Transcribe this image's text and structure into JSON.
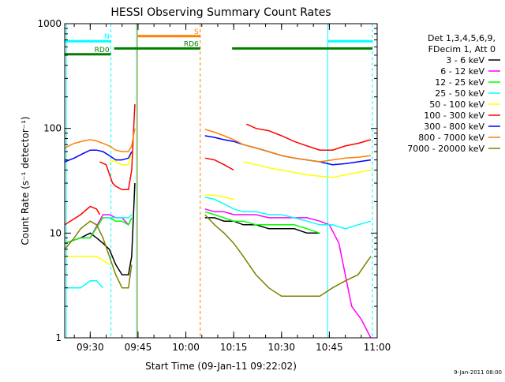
{
  "chart_data": {
    "type": "line",
    "title": "HESSI Observing Summary Count Rates",
    "xlabel": "Start Time (09-Jan-11 09:22:02)",
    "ylabel": "Count Rate (s⁻¹ detector⁻¹)",
    "x_unit": "minutes after 09:22:02",
    "xlim": [
      0,
      98
    ],
    "ylim": [
      1,
      1000
    ],
    "yscale": "log",
    "grid": false,
    "legend_position": "right",
    "footer": "9-Jan-2011 08:00",
    "legend_header": [
      "Det 1,3,4,5,6,9,",
      "FDecim 1, Att 0"
    ],
    "x_ticks": [
      {
        "label": "09:30",
        "value": 8
      },
      {
        "label": "09:45",
        "value": 23
      },
      {
        "label": "10:00",
        "value": 38
      },
      {
        "label": "10:15",
        "value": 53
      },
      {
        "label": "10:30",
        "value": 68
      },
      {
        "label": "10:45",
        "value": 83
      },
      {
        "label": "11:00",
        "value": 98
      }
    ],
    "y_ticks": [
      {
        "label": "1",
        "value": 1
      },
      {
        "label": "10",
        "value": 10
      },
      {
        "label": "100",
        "value": 100
      },
      {
        "label": "1000",
        "value": 1000
      }
    ],
    "vlines": [
      {
        "x": 0.5,
        "style": "solid",
        "color": "#00ffff"
      },
      {
        "x": 14.5,
        "style": "dashed",
        "color": "#00ffff"
      },
      {
        "x": 22.5,
        "style": "solid",
        "color": "#00ffff"
      },
      {
        "x": 22.8,
        "style": "solid",
        "color": "#ff8000"
      },
      {
        "x": 42.5,
        "style": "dashed",
        "color": "#ff8000"
      },
      {
        "x": 82.5,
        "style": "solid",
        "color": "#00ffff"
      },
      {
        "x": 96.5,
        "style": "dashed",
        "color": "#00ffff"
      }
    ],
    "bars": [
      {
        "label": "N",
        "color": "#00ffff",
        "y": 680,
        "segments": [
          [
            0,
            14.5
          ],
          [
            82.5,
            96.5
          ]
        ]
      },
      {
        "label": "S",
        "color": "#ff8000",
        "y": 760,
        "segments": [
          [
            22.8,
            42.5
          ]
        ]
      },
      {
        "label": "RD0",
        "color": "#008000",
        "y": 510,
        "segments": [
          [
            0,
            14.5
          ]
        ]
      },
      {
        "label": "RD6",
        "color": "#008000",
        "y": 580,
        "segments": [
          [
            15.5,
            42.5
          ],
          [
            52.5,
            96.5
          ]
        ]
      }
    ],
    "series": [
      {
        "name": "3 - 6 keV",
        "color": "#000000",
        "segments": [
          [
            [
              0,
              8
            ],
            [
              5,
              9
            ],
            [
              8,
              10
            ],
            [
              10,
              9
            ],
            [
              12,
              8
            ],
            [
              14,
              7
            ],
            [
              16,
              5
            ],
            [
              18,
              4
            ],
            [
              20,
              4
            ],
            [
              21,
              6
            ],
            [
              22,
              30
            ]
          ],
          [
            [
              44,
              14
            ],
            [
              47,
              14
            ],
            [
              50,
              13
            ],
            [
              53,
              13
            ],
            [
              56,
              12
            ],
            [
              60,
              12
            ],
            [
              64,
              11
            ],
            [
              68,
              11
            ],
            [
              72,
              11
            ],
            [
              76,
              10
            ],
            [
              80,
              10
            ]
          ]
        ]
      },
      {
        "name": "6 - 12 keV",
        "color": "#ff00ff",
        "segments": [
          [
            [
              0,
              8
            ],
            [
              5,
              9
            ],
            [
              8,
              9
            ],
            [
              12,
              15
            ],
            [
              14,
              15
            ],
            [
              16,
              14
            ],
            [
              18,
              14
            ],
            [
              20,
              12
            ],
            [
              21,
              14
            ]
          ],
          [
            [
              44,
              17
            ],
            [
              47,
              16
            ],
            [
              50,
              16
            ],
            [
              53,
              15
            ],
            [
              56,
              15
            ],
            [
              60,
              15
            ],
            [
              64,
              14
            ],
            [
              68,
              14
            ],
            [
              72,
              14
            ],
            [
              76,
              14
            ],
            [
              80,
              13
            ],
            [
              83,
              12
            ],
            [
              86,
              8
            ],
            [
              90,
              2
            ],
            [
              93,
              1.5
            ],
            [
              96,
              1
            ]
          ]
        ]
      },
      {
        "name": "12 - 25 keV",
        "color": "#00ff00",
        "segments": [
          [
            [
              0,
              8
            ],
            [
              5,
              9
            ],
            [
              8,
              9
            ],
            [
              12,
              14
            ],
            [
              14,
              14
            ],
            [
              16,
              13
            ],
            [
              18,
              13
            ],
            [
              20,
              12
            ],
            [
              21,
              14
            ]
          ],
          [
            [
              44,
              16
            ],
            [
              47,
              15
            ],
            [
              50,
              14
            ],
            [
              53,
              13
            ],
            [
              56,
              13
            ],
            [
              60,
              12
            ],
            [
              64,
              12
            ],
            [
              68,
              12
            ],
            [
              72,
              12
            ],
            [
              76,
              11
            ],
            [
              80,
              10
            ]
          ]
        ]
      },
      {
        "name": "25 - 50 keV",
        "color": "#00ffff",
        "segments": [
          [
            [
              0,
              3
            ],
            [
              3,
              3
            ],
            [
              5,
              3
            ],
            [
              8,
              3.5
            ],
            [
              10,
              3.5
            ],
            [
              12,
              3
            ]
          ],
          [
            [
              13,
              14
            ],
            [
              16,
              14
            ],
            [
              18,
              14
            ],
            [
              20,
              14
            ],
            [
              21,
              15
            ]
          ],
          [
            [
              44,
              22
            ],
            [
              47,
              21
            ],
            [
              50,
              19
            ],
            [
              53,
              17
            ],
            [
              56,
              16
            ],
            [
              60,
              16
            ],
            [
              64,
              15
            ],
            [
              68,
              15
            ],
            [
              72,
              14
            ],
            [
              76,
              13
            ],
            [
              80,
              12
            ],
            [
              84,
              12
            ],
            [
              88,
              11
            ],
            [
              92,
              12
            ],
            [
              96,
              13
            ]
          ]
        ]
      },
      {
        "name": "50 - 100 keV",
        "color": "#ffff00",
        "segments": [
          [
            [
              0,
              6
            ],
            [
              5,
              6
            ],
            [
              8,
              6
            ],
            [
              10,
              6
            ],
            [
              12,
              5.5
            ],
            [
              14,
              5
            ]
          ],
          [
            [
              14,
              50
            ],
            [
              16,
              48
            ],
            [
              18,
              45
            ],
            [
              20,
              45
            ],
            [
              21,
              60
            ]
          ],
          [
            [
              44,
              23
            ],
            [
              47,
              23
            ],
            [
              50,
              22
            ],
            [
              53,
              21
            ]
          ],
          [
            [
              56,
              48
            ],
            [
              60,
              45
            ],
            [
              64,
              42
            ],
            [
              68,
              40
            ],
            [
              72,
              38
            ],
            [
              76,
              36
            ],
            [
              80,
              35
            ],
            [
              84,
              34
            ],
            [
              88,
              36
            ],
            [
              92,
              38
            ],
            [
              96,
              40
            ]
          ]
        ]
      },
      {
        "name": "100 - 300 keV",
        "color": "#ff0000",
        "segments": [
          [
            [
              0,
              12
            ],
            [
              5,
              15
            ],
            [
              8,
              18
            ],
            [
              10,
              17
            ],
            [
              11,
              15
            ]
          ],
          [
            [
              11,
              48
            ],
            [
              13,
              45
            ],
            [
              15,
              30
            ],
            [
              16,
              28
            ],
            [
              18,
              26
            ],
            [
              20,
              26
            ],
            [
              21,
              40
            ],
            [
              22,
              170
            ]
          ],
          [
            [
              44,
              52
            ],
            [
              47,
              50
            ],
            [
              50,
              45
            ],
            [
              53,
              40
            ]
          ],
          [
            [
              57,
              110
            ],
            [
              60,
              100
            ],
            [
              64,
              95
            ],
            [
              68,
              85
            ],
            [
              72,
              75
            ],
            [
              76,
              68
            ],
            [
              80,
              62
            ],
            [
              84,
              62
            ],
            [
              88,
              68
            ],
            [
              92,
              72
            ],
            [
              96,
              78
            ]
          ]
        ]
      },
      {
        "name": "300 - 800 keV",
        "color": "#0000ff",
        "segments": [
          [
            [
              0,
              48
            ],
            [
              3,
              52
            ],
            [
              6,
              58
            ],
            [
              8,
              62
            ],
            [
              10,
              62
            ],
            [
              12,
              60
            ],
            [
              14,
              55
            ],
            [
              16,
              50
            ],
            [
              18,
              50
            ],
            [
              20,
              52
            ],
            [
              21,
              60
            ]
          ],
          [
            [
              44,
              85
            ],
            [
              47,
              82
            ],
            [
              50,
              78
            ],
            [
              53,
              75
            ],
            [
              56,
              70
            ],
            [
              60,
              65
            ],
            [
              64,
              60
            ],
            [
              68,
              55
            ],
            [
              72,
              52
            ],
            [
              76,
              50
            ],
            [
              80,
              48
            ],
            [
              84,
              45
            ],
            [
              88,
              46
            ],
            [
              92,
              48
            ],
            [
              96,
              50
            ]
          ]
        ]
      },
      {
        "name": "800 - 7000 keV",
        "color": "#ff8000",
        "segments": [
          [
            [
              0,
              65
            ],
            [
              3,
              72
            ],
            [
              6,
              76
            ],
            [
              8,
              78
            ],
            [
              10,
              76
            ],
            [
              12,
              72
            ],
            [
              14,
              68
            ],
            [
              16,
              62
            ],
            [
              18,
              60
            ],
            [
              20,
              60
            ],
            [
              21,
              68
            ],
            [
              22,
              100
            ]
          ],
          [
            [
              44,
              98
            ],
            [
              47,
              92
            ],
            [
              50,
              85
            ],
            [
              53,
              78
            ],
            [
              56,
              70
            ],
            [
              60,
              65
            ],
            [
              64,
              60
            ],
            [
              68,
              55
            ],
            [
              72,
              52
            ],
            [
              76,
              50
            ],
            [
              80,
              48
            ],
            [
              84,
              50
            ],
            [
              88,
              52
            ],
            [
              92,
              53
            ],
            [
              96,
              55
            ]
          ]
        ]
      },
      {
        "name": "7000 - 20000 keV",
        "color": "#808000",
        "segments": [
          [
            [
              0,
              7
            ],
            [
              3,
              9
            ],
            [
              5,
              11
            ],
            [
              8,
              13
            ],
            [
              10,
              12
            ],
            [
              12,
              9
            ],
            [
              14,
              6
            ],
            [
              16,
              4
            ],
            [
              18,
              3
            ],
            [
              20,
              3
            ],
            [
              21,
              5
            ]
          ],
          [
            [
              44,
              15
            ],
            [
              47,
              12
            ],
            [
              50,
              10
            ],
            [
              53,
              8
            ],
            [
              56,
              6
            ],
            [
              60,
              4
            ],
            [
              64,
              3
            ],
            [
              68,
              2.5
            ],
            [
              72,
              2.5
            ],
            [
              76,
              2.5
            ],
            [
              80,
              2.5
            ],
            [
              84,
              3
            ],
            [
              88,
              3.5
            ],
            [
              92,
              4
            ],
            [
              96,
              6
            ]
          ]
        ]
      }
    ]
  }
}
